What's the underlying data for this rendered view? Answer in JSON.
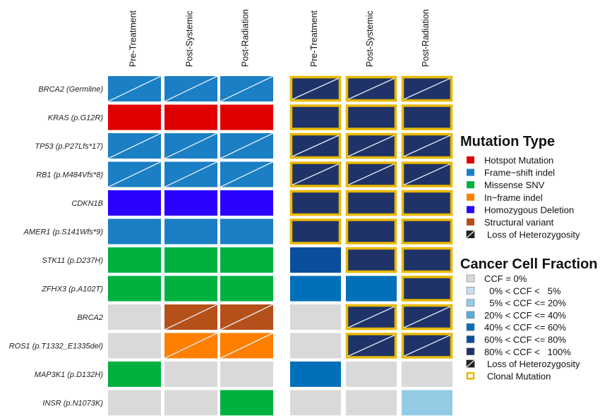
{
  "chart_data": {
    "type": "heatmap",
    "rows": [
      "BRCA2 (Germline)",
      "KRAS (p.G12R)",
      "TP53 (p.P27Lfs*17)",
      "RB1 (p.M484Vfs*8)",
      "CDKN1B",
      "AMER1 (p.S141Wfs*9)",
      "STK11 (p.D237H)",
      "ZFHX3 (p.A102T)",
      "BRCA2",
      "ROS1 (p.T1332_E1335del)",
      "MAP3K1 (p.D132H)",
      "INSR (p.N1073K)"
    ],
    "panels": [
      {
        "columns": [
          "Pre-Treatment",
          "Post-Systemic",
          "Post-Radiation"
        ],
        "encoding": "mutation_type",
        "values": [
          [
            "frameshift",
            "frameshift",
            "frameshift"
          ],
          [
            "hotspot",
            "hotspot",
            "hotspot"
          ],
          [
            "frameshift",
            "frameshift",
            "frameshift"
          ],
          [
            "frameshift",
            "frameshift",
            "frameshift"
          ],
          [
            "homdel",
            "homdel",
            "homdel"
          ],
          [
            "frameshift",
            "frameshift",
            "frameshift"
          ],
          [
            "missense",
            "missense",
            "missense"
          ],
          [
            "missense",
            "missense",
            "missense"
          ],
          [
            "none",
            "structural",
            "structural"
          ],
          [
            "none",
            "inframe",
            "inframe"
          ],
          [
            "missense",
            "none",
            "none"
          ],
          [
            "none",
            "none",
            "missense"
          ]
        ],
        "loh": [
          [
            true,
            true,
            true
          ],
          [
            false,
            false,
            false
          ],
          [
            true,
            true,
            true
          ],
          [
            true,
            true,
            true
          ],
          [
            false,
            false,
            false
          ],
          [
            false,
            false,
            false
          ],
          [
            false,
            false,
            false
          ],
          [
            false,
            false,
            false
          ],
          [
            false,
            true,
            true
          ],
          [
            false,
            true,
            true
          ],
          [
            false,
            false,
            false
          ],
          [
            false,
            false,
            false
          ]
        ]
      },
      {
        "columns": [
          "Pre-Treatment",
          "Post-Systemic",
          "Post-Radiation"
        ],
        "encoding": "ccf",
        "values": [
          [
            "80-100",
            "80-100",
            "80-100"
          ],
          [
            "80-100",
            "80-100",
            "80-100"
          ],
          [
            "80-100",
            "80-100",
            "80-100"
          ],
          [
            "80-100",
            "80-100",
            "80-100"
          ],
          [
            "80-100",
            "80-100",
            "80-100"
          ],
          [
            "80-100",
            "80-100",
            "80-100"
          ],
          [
            "60-80",
            "80-100",
            "80-100"
          ],
          [
            "40-60",
            "40-60",
            "80-100"
          ],
          [
            "0",
            "80-100",
            "80-100"
          ],
          [
            "0",
            "80-100",
            "80-100"
          ],
          [
            "40-60",
            "0",
            "0"
          ],
          [
            "0",
            "0",
            "5-20"
          ]
        ],
        "loh": [
          [
            true,
            true,
            true
          ],
          [
            false,
            false,
            false
          ],
          [
            true,
            true,
            true
          ],
          [
            true,
            true,
            true
          ],
          [
            false,
            false,
            false
          ],
          [
            false,
            false,
            false
          ],
          [
            false,
            false,
            false
          ],
          [
            false,
            false,
            false
          ],
          [
            false,
            true,
            true
          ],
          [
            false,
            true,
            true
          ],
          [
            false,
            false,
            false
          ],
          [
            false,
            false,
            false
          ]
        ],
        "clonal": [
          [
            true,
            true,
            true
          ],
          [
            true,
            true,
            true
          ],
          [
            true,
            true,
            true
          ],
          [
            true,
            true,
            true
          ],
          [
            true,
            true,
            true
          ],
          [
            true,
            true,
            true
          ],
          [
            false,
            true,
            true
          ],
          [
            false,
            false,
            true
          ],
          [
            false,
            true,
            true
          ],
          [
            false,
            true,
            true
          ],
          [
            false,
            false,
            false
          ],
          [
            false,
            false,
            false
          ]
        ]
      }
    ],
    "legends": [
      {
        "title": "Mutation Type",
        "items": [
          {
            "key": "hotspot",
            "label": "Hotspot Mutation",
            "color": "#e00000"
          },
          {
            "key": "frameshift",
            "label": "Frame−shift indel",
            "color": "#1a7fc4"
          },
          {
            "key": "missense",
            "label": "Missense SNV",
            "color": "#00b140"
          },
          {
            "key": "inframe",
            "label": "In−frame indel",
            "color": "#ff7f00"
          },
          {
            "key": "homdel",
            "label": "Homozygous Deletion",
            "color": "#2a00ff"
          },
          {
            "key": "structural",
            "label": "Structural variant",
            "color": "#b5501a"
          },
          {
            "key": "loh",
            "label": "Loss of Heterozygosity",
            "color": "#222222"
          }
        ]
      },
      {
        "title": "Cancer Cell Fraction",
        "items": [
          {
            "key": "0",
            "label": "CCF = 0%",
            "color": "#d9d9d9"
          },
          {
            "key": "0-5",
            "label": "  0% < CCF <   5%",
            "color": "#c6dbef"
          },
          {
            "key": "5-20",
            "label": "  5% < CCF <= 20%",
            "color": "#93cbe4"
          },
          {
            "key": "20-40",
            "label": "20% < CCF <= 40%",
            "color": "#5aaade"
          },
          {
            "key": "40-60",
            "label": "40% < CCF <= 60%",
            "color": "#0070ba"
          },
          {
            "key": "60-80",
            "label": "60% < CCF <= 80%",
            "color": "#0a4f9e"
          },
          {
            "key": "80-100",
            "label": "80% < CCF <   100%",
            "color": "#1f3368"
          },
          {
            "key": "loh",
            "label": "Loss of Heterozygosity",
            "color": "#222222"
          },
          {
            "key": "clonal",
            "label": "Clonal Mutation",
            "color": "#e8b800"
          }
        ]
      }
    ],
    "none_color": "#d9d9d9",
    "clonal_border_color": "#e8b800"
  }
}
